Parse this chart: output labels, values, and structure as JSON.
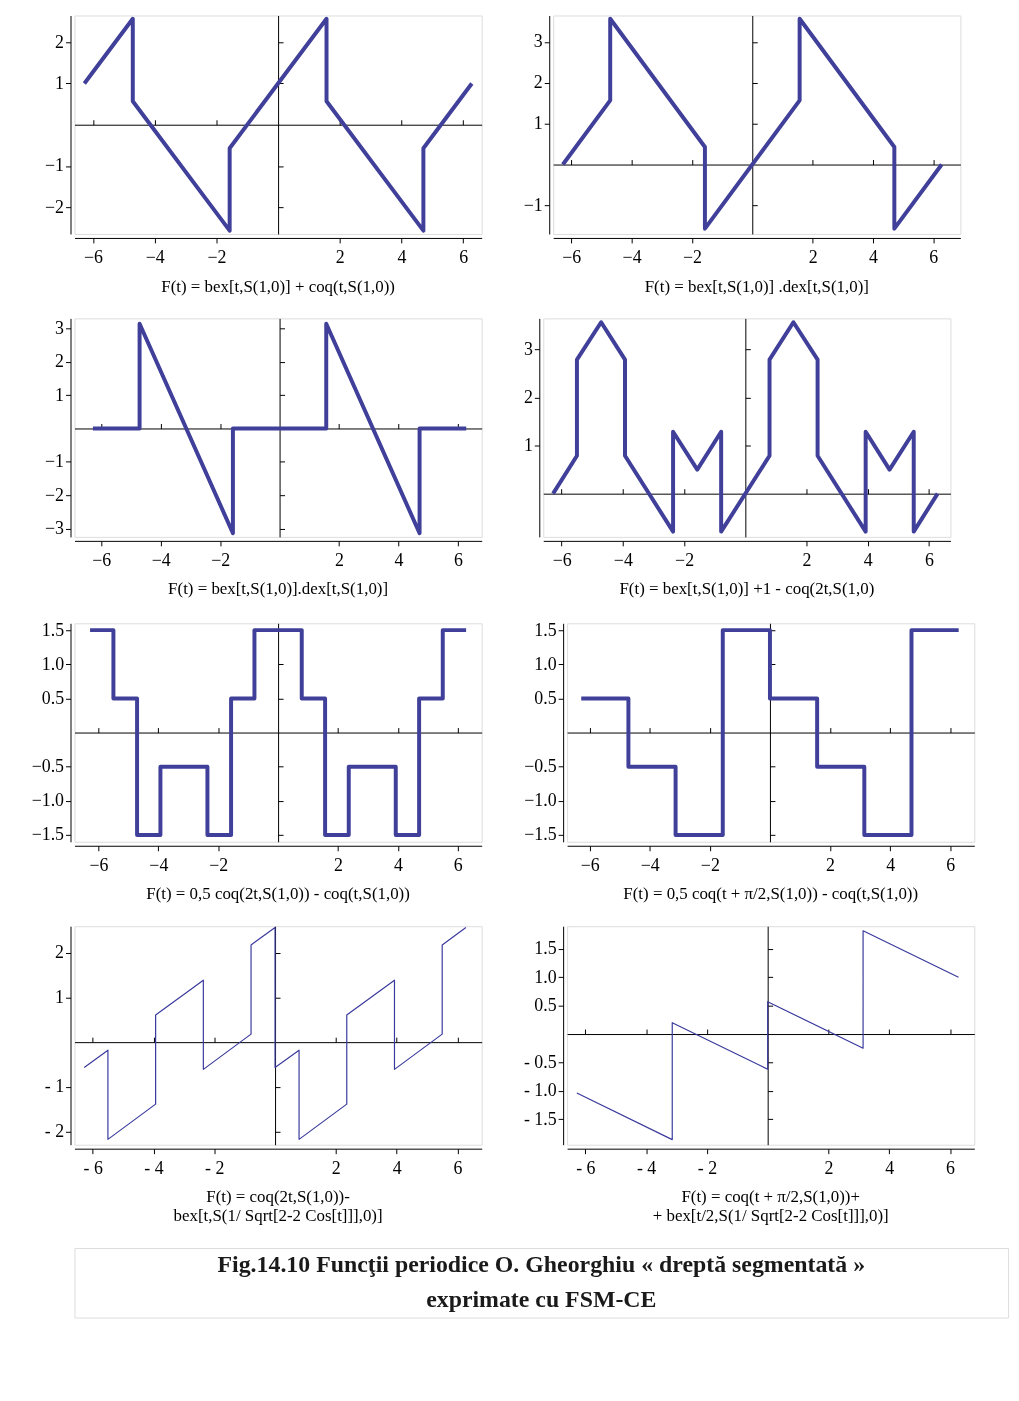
{
  "chart_data": [
    {
      "type": "line",
      "title": "F(t) = bex[t,S(1,0)] + coq(t,S(1,0))",
      "xlim": [
        -6.6,
        6.6
      ],
      "ylim": [
        -2.65,
        2.65
      ],
      "xticks": [
        -6,
        -4,
        -2,
        2,
        4,
        6
      ],
      "yticks": [
        -2,
        -1,
        1,
        2
      ],
      "x": [
        -6.28,
        -4.71,
        -4.71,
        -1.57,
        -1.57,
        1.57,
        1.57,
        4.71,
        4.71,
        6.28
      ],
      "series": [
        {
          "color": "#40409a",
          "values": [
            1,
            2.57,
            0.57,
            -2.57,
            -0.57,
            2.57,
            0.57,
            -2.57,
            -0.57,
            1
          ]
        }
      ]
    },
    {
      "type": "line",
      "title": "F(t) = bex[t,S(1,0)] .dex[t,S(1,0)]",
      "xlim": [
        -6.6,
        6.9
      ],
      "ylim": [
        -1.7,
        3.65
      ],
      "xticks": [
        -6,
        -4,
        -2,
        2,
        4,
        6
      ],
      "yticks": [
        -1,
        1,
        2,
        3
      ],
      "x": [
        -6.28,
        -4.71,
        -4.71,
        -1.57,
        -1.57,
        1.57,
        1.57,
        4.71,
        4.71,
        6.28
      ],
      "series": [
        {
          "color": "#40409a",
          "values": [
            0,
            1.57,
            3.57,
            0.43,
            -1.57,
            1.57,
            3.57,
            0.43,
            -1.57,
            0
          ]
        }
      ]
    },
    {
      "type": "line",
      "title": "F(t) = bex[t,S(1,0)].dex[t,S(1,0)]",
      "xlim": [
        -6.9,
        6.8
      ],
      "ylim": [
        -3.25,
        3.3
      ],
      "xticks": [
        -6,
        -4,
        -2,
        2,
        4,
        6
      ],
      "yticks": [
        -3,
        -2,
        -1,
        1,
        2,
        3
      ],
      "x": [
        -6.28,
        -4.71,
        -4.71,
        -1.57,
        -1.57,
        1.57,
        1.57,
        4.71,
        4.71,
        6.28
      ],
      "series": [
        {
          "color": "#40409a",
          "values": [
            0,
            0,
            3.14,
            -3.14,
            0,
            0,
            3.14,
            -3.14,
            0,
            0
          ]
        }
      ]
    },
    {
      "type": "line",
      "title": "F(t) = bex[t,S(1,0)] +1 - coq(2t,S(1,0)",
      "xlim": [
        -6.6,
        6.7
      ],
      "ylim": [
        -0.9,
        3.65
      ],
      "xticks": [
        -6,
        -4,
        -2,
        2,
        4,
        6
      ],
      "yticks": [
        1,
        2,
        3
      ],
      "x": [
        -6.28,
        -5.5,
        -5.5,
        -4.71,
        -3.93,
        -3.93,
        -2.36,
        -2.36,
        -1.57,
        -0.79,
        -0.79,
        0.79,
        0.79,
        1.57,
        2.36,
        2.36,
        3.93,
        3.93,
        4.71,
        5.5,
        5.5,
        6.28
      ],
      "series": [
        {
          "color": "#40409a",
          "values": [
            0,
            0.79,
            2.79,
            3.57,
            2.79,
            0.79,
            -0.79,
            1.29,
            0.5,
            1.29,
            -0.79,
            0.79,
            2.79,
            3.57,
            2.79,
            0.79,
            -0.79,
            1.29,
            0.5,
            1.29,
            -0.79,
            0
          ]
        }
      ]
    },
    {
      "type": "step",
      "title": "F(t) = 0,5 coq(2t,S(1,0)) - coq(t,S(1,0))",
      "xlim": [
        -6.8,
        6.8
      ],
      "ylim": [
        -1.6,
        1.6
      ],
      "xticks": [
        -6,
        -4,
        -2,
        2,
        4,
        6
      ],
      "yticks": [
        {
          "value": -1.5,
          "label": "−1.5"
        },
        {
          "value": -1,
          "label": "−1.0"
        },
        -0.5,
        0.5,
        {
          "value": 1,
          "label": "1.0"
        },
        1.5
      ],
      "x": [
        -6.28,
        -5.5,
        -4.71,
        -3.93,
        -2.36,
        -1.57,
        -0.79,
        0.79,
        1.57,
        2.36,
        3.93,
        4.71,
        5.5,
        6.28
      ],
      "series": [
        {
          "color": "#40409a",
          "values": [
            1.5,
            0.5,
            -1.5,
            -0.5,
            -1.5,
            0.5,
            1.5,
            0.5,
            -1.5,
            -0.5,
            -1.5,
            0.5,
            1.5,
            1.5
          ]
        }
      ]
    },
    {
      "type": "step",
      "title": "F(t) = 0,5 coq(t + π/2,S(1,0)) - coq(t,S(1,0))",
      "xlim": [
        -6.75,
        6.8
      ],
      "ylim": [
        -1.6,
        1.6
      ],
      "xticks": [
        -6,
        -4,
        -2,
        2,
        4,
        6
      ],
      "yticks": [
        {
          "value": -1.5,
          "label": "−1.5"
        },
        {
          "value": -1,
          "label": "−1.0"
        },
        -0.5,
        0.5,
        {
          "value": 1,
          "label": "1.0"
        },
        1.5
      ],
      "x": [
        -6.28,
        -4.71,
        -3.14,
        -1.57,
        0,
        1.57,
        3.14,
        4.71,
        6.28
      ],
      "series": [
        {
          "color": "#40409a",
          "values": [
            0.5,
            -0.5,
            -1.5,
            1.5,
            0.5,
            -0.5,
            -1.5,
            1.5,
            1.5
          ]
        }
      ]
    },
    {
      "type": "line",
      "title": "F(t) = coq(2t,S(1,0))-\nbex[t,S(1/ Sqrt[2-2 Cos[t]]],0)]",
      "xlim": [
        -6.6,
        6.8
      ],
      "ylim": [
        -2.3,
        2.6
      ],
      "xticks": [
        {
          "value": -6,
          "label": "- 6"
        },
        {
          "value": -4,
          "label": "- 4"
        },
        {
          "value": -2,
          "label": "- 2"
        },
        2,
        4,
        6
      ],
      "yticks": [
        {
          "value": -2,
          "label": "- 2"
        },
        {
          "value": -1,
          "label": "- 1"
        },
        1,
        2
      ],
      "x": [
        -6.28,
        -5.5,
        -5.5,
        -3.93,
        -3.93,
        -2.36,
        -2.36,
        -0.79,
        -0.79,
        0,
        0,
        0.79,
        0.79,
        2.36,
        2.36,
        3.93,
        3.93,
        5.5,
        5.5,
        6.28
      ],
      "series": [
        {
          "color": "#3a3a9e",
          "values": [
            -0.57,
            -0.18,
            -2.18,
            -1.39,
            0.61,
            1.39,
            -0.61,
            0.18,
            2.18,
            2.57,
            -0.57,
            -0.18,
            -2.18,
            -1.39,
            0.61,
            1.39,
            -0.61,
            0.18,
            2.18,
            2.57
          ]
        }
      ]
    },
    {
      "type": "line",
      "title": "F(t) = coq(t + π/2,S(1,0))+\n+ bex[t/2,S(1/ Sqrt[2-2 Cos[t]]],0)]",
      "xlim": [
        -6.6,
        6.8
      ],
      "ylim": [
        -1.95,
        1.9
      ],
      "xticks": [
        {
          "value": -6,
          "label": "- 6"
        },
        {
          "value": -4,
          "label": "- 4"
        },
        {
          "value": -2,
          "label": "- 2"
        },
        2,
        4,
        6
      ],
      "yticks": [
        {
          "value": -1.5,
          "label": "- 1.5"
        },
        {
          "value": -1,
          "label": "- 1.0"
        },
        {
          "value": -0.5,
          "label": "- 0.5"
        },
        0.5,
        {
          "value": 1,
          "label": "1.0"
        },
        1.5
      ],
      "x": [
        -6.28,
        -3.14,
        -3.14,
        0,
        0,
        3.14,
        3.14,
        6.28
      ],
      "series": [
        {
          "color": "#3a3a9e",
          "values": [
            -1.04,
            -1.86,
            0.2,
            -0.62,
            0.57,
            -0.25,
            1.82,
            1.0
          ]
        }
      ]
    },
    {
      "type": "other",
      "title": "Fig.14.10 Funcţii periodice O. Gheorghiu « dreptă segmentată »\nexprimate cu FSM-CE"
    }
  ]
}
